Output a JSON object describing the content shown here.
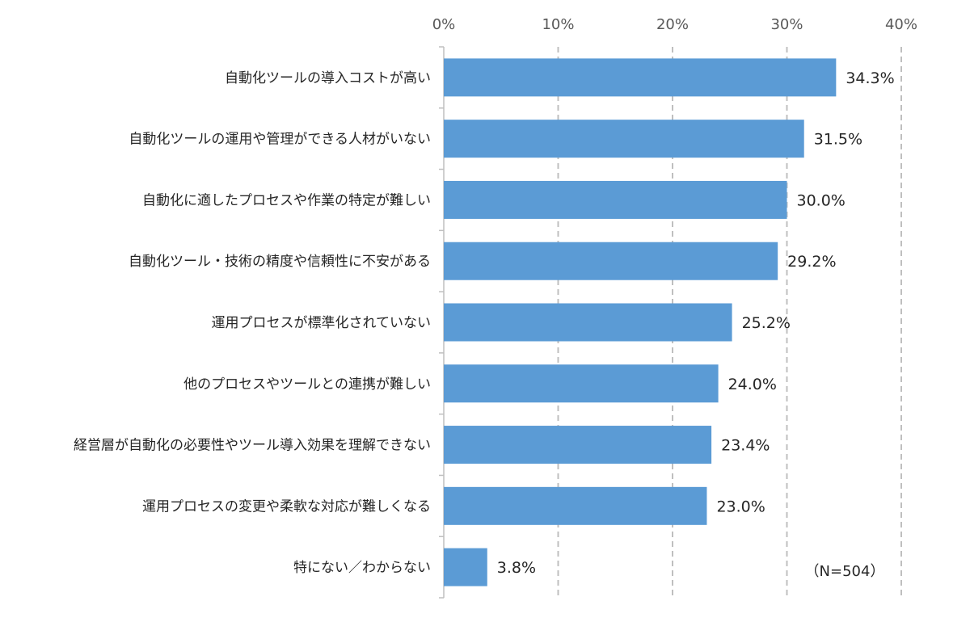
{
  "chart_data": {
    "type": "bar",
    "orientation": "horizontal",
    "categories": [
      "自動化ツールの導入コストが高い",
      "自動化ツールの運用や管理ができる人材がいない",
      "自動化に適したプロセスや作業の特定が難しい",
      "自動化ツール・技術の精度や信頼性に不安がある",
      "運用プロセスが標準化されていない",
      "他のプロセスやツールとの連携が難しい",
      "経営層が自動化の必要性やツール導入効果を理解できない",
      "運用プロセスの変更や柔軟な対応が難しくなる",
      "特にない／わからない"
    ],
    "values": [
      34.3,
      31.5,
      30.0,
      29.2,
      25.2,
      24.0,
      23.4,
      23.0,
      3.8
    ],
    "value_labels": [
      "34.3%",
      "31.5%",
      "30.0%",
      "29.2%",
      "25.2%",
      "24.0%",
      "23.4%",
      "23.0%",
      "3.8%"
    ],
    "xlim": [
      0,
      40
    ],
    "xticks": [
      0,
      10,
      20,
      30,
      40
    ],
    "xtick_labels": [
      "0%",
      "10%",
      "20%",
      "30%",
      "40%"
    ],
    "tick_position": "top",
    "grid": "vertical-dashed",
    "bar_color": "#5B9BD5",
    "grid_color": "#BFBFBF",
    "annotation": "（N=504）"
  }
}
